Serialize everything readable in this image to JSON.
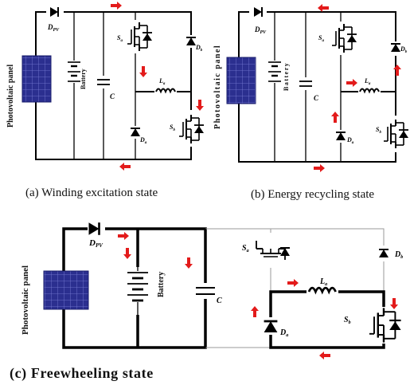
{
  "figure": {
    "panels": [
      {
        "caption": "(a) Winding excitation state",
        "pv_label": "Photovoltaic panel",
        "battery_label": "Battery",
        "labels": {
          "dpv": "D",
          "dpv_sub": "PV",
          "sa": "S",
          "sa_sub": "a",
          "db": "D",
          "db_sub": "b",
          "la": "L",
          "la_sub": "a",
          "sb": "S",
          "sb_sub": "b",
          "da": "D",
          "da_sub": "a",
          "c": "C"
        }
      },
      {
        "caption": "(b) Energy recycling state",
        "pv_label": "Photovoltaic panel",
        "battery_label": "Battery",
        "labels": {
          "dpv": "D",
          "dpv_sub": "PV",
          "sa": "S",
          "sa_sub": "a",
          "db": "D",
          "db_sub": "b",
          "la": "L",
          "la_sub": "a",
          "sb": "S",
          "sb_sub": "b",
          "da": "D",
          "da_sub": "a",
          "c": "C"
        }
      },
      {
        "caption": "(c) Freewheeling state",
        "pv_label": "Photovoltaic panel",
        "battery_label": "Battery",
        "labels": {
          "dpv": "D",
          "dpv_sub": "PV",
          "sa": "S",
          "sa_sub": "a",
          "db": "D",
          "db_sub": "b",
          "la": "L",
          "la_sub": "a",
          "sb": "S",
          "sb_sub": "b",
          "da": "D",
          "da_sub": "a",
          "c": "C"
        }
      }
    ],
    "colors": {
      "current_arrow": "#e31b1b",
      "pv_cell": "#2b2f8f",
      "pv_grid": "#7b7fd6"
    }
  }
}
